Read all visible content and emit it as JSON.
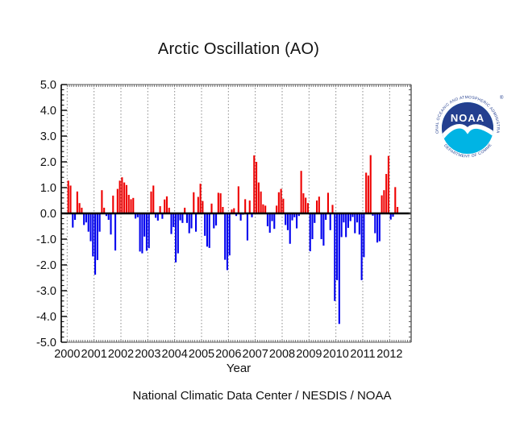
{
  "title": "Arctic Oscillation (AO)",
  "footer": "National Climatic Data Center / NESDIS / NOAA",
  "chart_data": {
    "type": "bar",
    "title": "Arctic Oscillation (AO)",
    "xlabel": "Year",
    "ylabel": "",
    "start": "2000-01",
    "end": "2012-04",
    "frequency": "monthly",
    "ylim": [
      -5.0,
      5.0
    ],
    "y_tick_labels": [
      "5.0",
      "4.0",
      "3.0",
      "2.0",
      "1.0",
      "0.0",
      "-1.0",
      "-2.0",
      "-3.0",
      "-4.0",
      "-5.0"
    ],
    "x_tick_labels": [
      "2000",
      "2001",
      "2002",
      "2003",
      "2004",
      "2005",
      "2006",
      "2007",
      "2008",
      "2009",
      "2010",
      "2011",
      "2012"
    ],
    "grid": "vertical-dotted-per-year",
    "legend": null,
    "positive_color": "#ee0000",
    "negative_color": "#0000ee",
    "zero_line_color": "#000000",
    "values": [
      1.27,
      1.08,
      -0.55,
      -0.25,
      0.85,
      0.4,
      0.22,
      -0.45,
      -0.35,
      -0.71,
      -1.08,
      -1.67,
      -2.38,
      -1.81,
      -0.71,
      0.9,
      0.22,
      -0.1,
      -0.25,
      -0.82,
      0.69,
      -1.44,
      0.95,
      1.27,
      1.4,
      1.2,
      1.1,
      0.72,
      0.55,
      0.6,
      -0.2,
      -0.15,
      -1.48,
      -1.55,
      -0.9,
      -1.45,
      -1.35,
      0.85,
      1.08,
      -0.17,
      -0.28,
      0.28,
      -0.21,
      0.54,
      0.66,
      0.22,
      -0.8,
      -0.53,
      -1.9,
      -1.55,
      -0.27,
      -0.37,
      0.22,
      -0.37,
      -0.77,
      -0.58,
      0.82,
      -0.71,
      0.64,
      1.15,
      0.48,
      -0.87,
      -1.29,
      -1.34,
      0.38,
      -0.58,
      -0.47,
      0.8,
      0.78,
      0.25,
      -1.8,
      -2.2,
      -1.63,
      0.15,
      0.2,
      -0.1,
      1.05,
      -0.28,
      -0.05,
      0.55,
      -1.05,
      0.5,
      -0.15,
      2.25,
      2.0,
      1.2,
      0.85,
      0.35,
      0.3,
      -0.5,
      -0.75,
      -0.3,
      -0.6,
      0.3,
      0.82,
      0.95,
      0.57,
      -0.45,
      -0.65,
      -1.18,
      -0.27,
      -0.15,
      -0.58,
      -0.1,
      1.65,
      0.78,
      0.61,
      0.4,
      -1.47,
      -1.0,
      -0.37,
      0.5,
      0.65,
      -1.0,
      -1.25,
      -0.25,
      0.8,
      -0.65,
      0.33,
      -3.4,
      -2.59,
      -4.29,
      -0.92,
      -0.35,
      -0.92,
      -0.56,
      -0.3,
      -0.14,
      -0.77,
      -0.35,
      -0.82,
      -2.59,
      -1.7,
      1.58,
      1.47,
      2.26,
      -0.09,
      -0.77,
      -1.13,
      -1.08,
      0.7,
      0.9,
      1.53,
      2.23,
      -0.24,
      -0.13,
      1.02,
      0.25
    ]
  },
  "logo": {
    "top_text": "NATIONAL OCEANIC AND ATMOSPHERIC ADMINISTRATION",
    "bottom_text": "U.S. DEPARTMENT OF COMMERCE",
    "center_text": "NOAA",
    "registered_mark": "®",
    "navy": "#233f8f",
    "cyan": "#00b4e4",
    "white": "#ffffff"
  }
}
